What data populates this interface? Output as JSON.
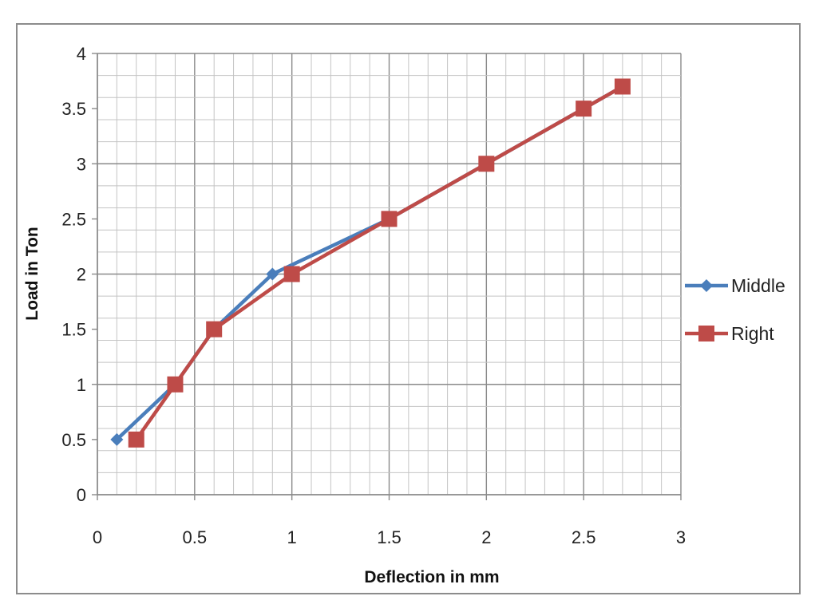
{
  "chart_data": {
    "type": "line",
    "title": "",
    "xlabel": "Deflection in mm",
    "ylabel": "Load in Ton",
    "xlim": [
      0,
      3
    ],
    "ylim": [
      0,
      4
    ],
    "x_ticks": [
      "0",
      "0.5",
      "1",
      "1.5",
      "2",
      "2.5",
      "3"
    ],
    "y_ticks": [
      "0",
      "0.5",
      "1",
      "1.5",
      "2",
      "2.5",
      "3",
      "3.5",
      "4"
    ],
    "grid": true,
    "legend_position": "right",
    "series": [
      {
        "name": "Middle",
        "marker": "diamond",
        "color": "#4a7ebb",
        "points": [
          {
            "x": 0.1,
            "y": 0.5
          },
          {
            "x": 0.4,
            "y": 1.0
          },
          {
            "x": 0.6,
            "y": 1.5
          },
          {
            "x": 0.9,
            "y": 2.0
          },
          {
            "x": 1.5,
            "y": 2.5
          },
          {
            "x": 2.0,
            "y": 3.0
          },
          {
            "x": 2.5,
            "y": 3.5
          },
          {
            "x": 2.7,
            "y": 3.7
          }
        ]
      },
      {
        "name": "Right",
        "marker": "square",
        "color": "#be4b48",
        "points": [
          {
            "x": 0.2,
            "y": 0.5
          },
          {
            "x": 0.4,
            "y": 1.0
          },
          {
            "x": 0.6,
            "y": 1.5
          },
          {
            "x": 1.0,
            "y": 2.0
          },
          {
            "x": 1.5,
            "y": 2.5
          },
          {
            "x": 2.0,
            "y": 3.0
          },
          {
            "x": 2.5,
            "y": 3.5
          },
          {
            "x": 2.7,
            "y": 3.7
          }
        ]
      }
    ]
  }
}
